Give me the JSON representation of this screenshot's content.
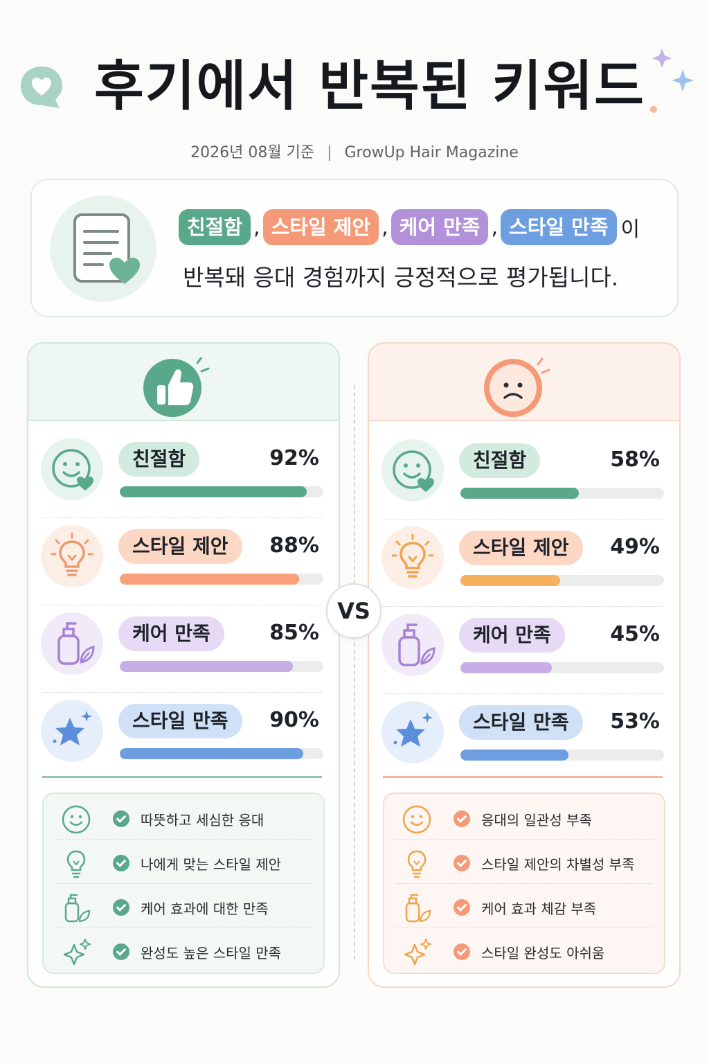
{
  "header": {
    "title": "후기에서 반복된 키워드",
    "date_text": "2026년 08월 기준",
    "separator": "|",
    "source": "GrowUp Hair Magazine"
  },
  "summary": {
    "keywords": [
      "친절함",
      "스타일 제안",
      "케어 만족",
      "스타일 만족"
    ],
    "comma": ",",
    "suffix": "이",
    "line2": "반복돼 응대 경험까지 긍정적으로 평가됩니다."
  },
  "colors": {
    "green": "#5aa88a",
    "orange": "#f59a78",
    "purple": "#b391da",
    "blue": "#6c9ee0"
  },
  "left_panel": {
    "header_icon": "thumbs-up-icon",
    "rows": [
      {
        "label": "친절함",
        "percent": "92%",
        "value": 92,
        "icon": "smile-heart-icon"
      },
      {
        "label": "스타일 제안",
        "percent": "88%",
        "value": 88,
        "icon": "lightbulb-icon"
      },
      {
        "label": "케어 만족",
        "percent": "85%",
        "value": 85,
        "icon": "bottle-leaf-icon"
      },
      {
        "label": "스타일 만족",
        "percent": "90%",
        "value": 90,
        "icon": "star-icon"
      }
    ],
    "checklist": [
      {
        "text": "따뜻하고 세심한 응대",
        "icon": "smile-icon"
      },
      {
        "text": "나에게 맞는 스타일 제안",
        "icon": "lightbulb-icon"
      },
      {
        "text": "케어 효과에 대한 만족",
        "icon": "bottle-leaf-icon"
      },
      {
        "text": "완성도 높은 스타일 만족",
        "icon": "sparkle-icon"
      }
    ]
  },
  "vs_label": "VS",
  "right_panel": {
    "header_icon": "sad-face-icon",
    "rows": [
      {
        "label": "친절함",
        "percent": "58%",
        "value": 58,
        "icon": "smile-heart-icon"
      },
      {
        "label": "스타일 제안",
        "percent": "49%",
        "value": 49,
        "icon": "lightbulb-icon"
      },
      {
        "label": "케어 만족",
        "percent": "45%",
        "value": 45,
        "icon": "bottle-leaf-icon"
      },
      {
        "label": "스타일 만족",
        "percent": "53%",
        "value": 53,
        "icon": "star-icon"
      }
    ],
    "checklist": [
      {
        "text": "응대의 일관성 부족",
        "icon": "smile-icon"
      },
      {
        "text": "스타일 제안의 차별성 부족",
        "icon": "lightbulb-icon"
      },
      {
        "text": "케어 효과 체감 부족",
        "icon": "bottle-leaf-icon"
      },
      {
        "text": "스타일 완성도 아쉬움",
        "icon": "sparkle-icon"
      }
    ]
  }
}
